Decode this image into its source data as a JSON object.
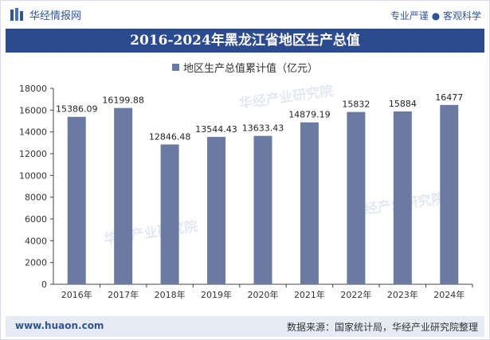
{
  "header": {
    "logo_text": "华经情报网",
    "slogan": "专业严谨 ● 客观科学"
  },
  "watermark": "华经产业研究院",
  "colors": {
    "bar": "#6a7aa0",
    "title_bg": "#2c4a8e",
    "footer_bg": "#e7ebf5",
    "brand": "#2f5597"
  },
  "chart_data": {
    "type": "bar",
    "title": "2016-2024年黑龙江省地区生产总值",
    "categories": [
      "2016年",
      "2017年",
      "2018年",
      "2019年",
      "2020年",
      "2021年",
      "2022年",
      "2023年",
      "2024年"
    ],
    "series": [
      {
        "name": "地区生产总值累计值（亿元）",
        "values": [
          15386.09,
          16199.88,
          12846.48,
          13544.43,
          13633.43,
          14879.19,
          15832,
          15884,
          16477
        ],
        "labels": [
          "15386.09",
          "16199.88",
          "12846.48",
          "13544.43",
          "13633.43",
          "14879.19",
          "15832",
          "15884",
          "16477"
        ]
      }
    ],
    "ylim": [
      0,
      18000
    ],
    "yticks": [
      0,
      2000,
      4000,
      6000,
      8000,
      10000,
      12000,
      14000,
      16000,
      18000
    ],
    "grid": false,
    "legend_position": "top-center"
  },
  "footer": {
    "url": "www.huaon.com",
    "source": "数据来源：国家统计局，华经产业研究院整理"
  }
}
